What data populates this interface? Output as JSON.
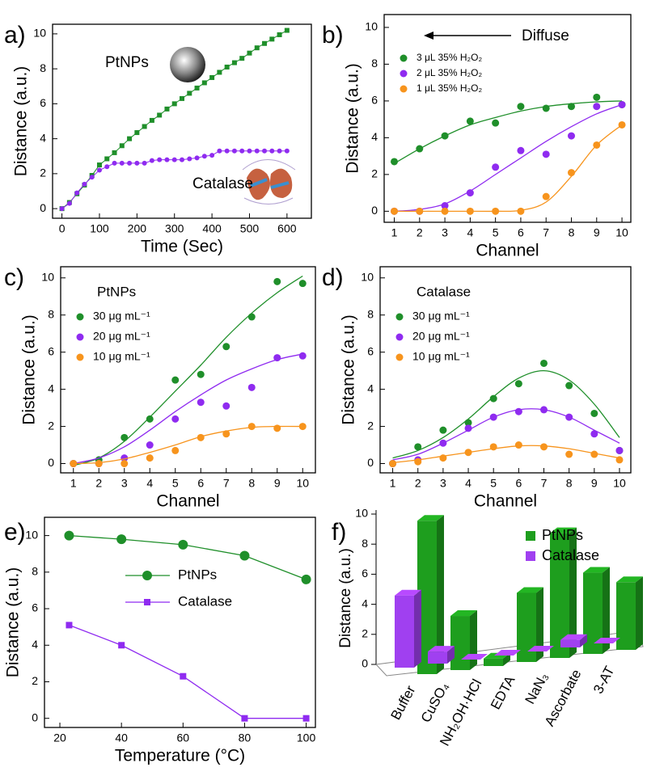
{
  "chart_data": [
    {
      "type": "line",
      "panel_label": "a)",
      "xlabel": "Time (Sec)",
      "ylabel": "Distance (a.u.)",
      "xlim": [
        -25,
        665
      ],
      "ylim": [
        -0.55,
        10.55
      ],
      "xticks": [
        0,
        100,
        200,
        300,
        400,
        500,
        600
      ],
      "yticks": [
        0,
        2,
        4,
        6,
        8,
        10
      ],
      "annotations": [
        "PtNPs",
        "Catalase"
      ],
      "x": [
        0,
        20,
        40,
        60,
        80,
        100,
        120,
        140,
        160,
        180,
        200,
        220,
        240,
        260,
        280,
        300,
        320,
        340,
        360,
        380,
        400,
        420,
        440,
        460,
        480,
        500,
        520,
        540,
        560,
        580,
        600
      ],
      "series": [
        {
          "name": "PtNPs",
          "color": "#1f8f2a",
          "marker": "square",
          "values": [
            0,
            0.35,
            0.85,
            1.35,
            1.9,
            2.5,
            2.85,
            3.2,
            3.6,
            4.0,
            4.35,
            4.7,
            5.05,
            5.35,
            5.7,
            6.0,
            6.3,
            6.6,
            6.9,
            7.2,
            7.5,
            7.8,
            8.1,
            8.35,
            8.6,
            8.9,
            9.2,
            9.45,
            9.7,
            9.95,
            10.2
          ]
        },
        {
          "name": "Catalase",
          "color": "#8f2bf0",
          "marker": "circle",
          "values": [
            0,
            0.3,
            0.9,
            1.4,
            1.8,
            2.2,
            2.4,
            2.6,
            2.6,
            2.6,
            2.6,
            2.6,
            2.75,
            2.8,
            2.8,
            2.8,
            2.8,
            2.85,
            2.9,
            3.0,
            3.05,
            3.3,
            3.3,
            3.3,
            3.3,
            3.3,
            3.3,
            3.3,
            3.3,
            3.3,
            3.3
          ]
        }
      ]
    },
    {
      "type": "scatter",
      "panel_label": "b)",
      "xlabel": "Channel",
      "ylabel": "Distance (a.u.)",
      "annotation": "Diffuse",
      "xlim": [
        0.6,
        10.35
      ],
      "ylim": [
        -0.6,
        10.7
      ],
      "xticks": [
        1,
        2,
        3,
        4,
        5,
        6,
        7,
        8,
        9,
        10
      ],
      "yticks": [
        0,
        2,
        4,
        6,
        8,
        10
      ],
      "x": [
        1,
        2,
        3,
        4,
        5,
        6,
        7,
        8,
        9,
        10
      ],
      "series": [
        {
          "name": "3 μL  35% H₂O₂",
          "color": "#1f8f2a",
          "values": [
            2.7,
            3.4,
            4.1,
            4.9,
            4.8,
            5.7,
            5.6,
            5.7,
            6.2,
            5.8
          ],
          "fit": [
            2.6,
            3.4,
            4.1,
            4.7,
            5.1,
            5.45,
            5.7,
            5.85,
            5.95,
            6.0
          ]
        },
        {
          "name": "2 μL  35% H₂O₂",
          "color": "#8f2bf0",
          "values": [
            0,
            0,
            0.3,
            1.0,
            2.4,
            3.3,
            3.1,
            4.1,
            5.7,
            5.8
          ],
          "fit": [
            0,
            0.1,
            0.4,
            1.1,
            2.0,
            2.9,
            3.8,
            4.6,
            5.3,
            5.8
          ]
        },
        {
          "name": "1 μL  35% H₂O₂",
          "color": "#f7941d",
          "values": [
            0,
            0,
            0,
            0,
            0,
            0,
            0.8,
            2.1,
            3.6,
            4.7
          ],
          "fit": [
            0,
            0,
            0,
            0,
            0,
            0.05,
            0.5,
            1.9,
            3.6,
            4.7
          ]
        }
      ]
    },
    {
      "type": "scatter",
      "panel_label": "c)",
      "xlabel": "Channel",
      "ylabel": "Distance (a.u.)",
      "legend_title": "PtNPs",
      "xlim": [
        0.5,
        10.5
      ],
      "ylim": [
        -0.5,
        10.6
      ],
      "xticks": [
        1,
        2,
        3,
        4,
        5,
        6,
        7,
        8,
        9,
        10
      ],
      "yticks": [
        0,
        2,
        4,
        6,
        8,
        10
      ],
      "x": [
        1,
        2,
        3,
        4,
        5,
        6,
        7,
        8,
        9,
        10
      ],
      "series": [
        {
          "name": "30 μg mL⁻¹",
          "color": "#1f8f2a",
          "values": [
            0,
            0.2,
            1.4,
            2.4,
            4.5,
            4.8,
            6.3,
            7.9,
            9.8,
            9.7
          ],
          "fit": [
            -0.1,
            0.3,
            1.2,
            2.5,
            3.9,
            5.3,
            6.8,
            8.1,
            9.2,
            10.1
          ]
        },
        {
          "name": "20 μg mL⁻¹",
          "color": "#8f2bf0",
          "values": [
            0,
            0,
            0.3,
            1.0,
            2.4,
            3.3,
            3.1,
            4.1,
            5.7,
            5.8
          ],
          "fit": [
            0,
            0.3,
            0.9,
            1.8,
            2.8,
            3.7,
            4.5,
            5.1,
            5.6,
            5.9
          ]
        },
        {
          "name": "10 μg mL⁻¹",
          "color": "#f7941d",
          "values": [
            0,
            0,
            0,
            0.3,
            0.7,
            1.4,
            1.6,
            2.0,
            1.9,
            2.0
          ],
          "fit": [
            0,
            0.05,
            0.25,
            0.6,
            1.0,
            1.45,
            1.75,
            1.95,
            2.0,
            2.0
          ]
        }
      ]
    },
    {
      "type": "scatter",
      "panel_label": "d)",
      "xlabel": "Channel",
      "ylabel": "Distance (a.u.)",
      "legend_title": "Catalase",
      "xlim": [
        0.5,
        10.45
      ],
      "ylim": [
        -0.5,
        10.6
      ],
      "xticks": [
        1,
        2,
        3,
        4,
        5,
        6,
        7,
        8,
        9,
        10
      ],
      "yticks": [
        0,
        2,
        4,
        6,
        8,
        10
      ],
      "x": [
        1,
        2,
        3,
        4,
        5,
        6,
        7,
        8,
        9,
        10
      ],
      "series": [
        {
          "name": "30 μg mL⁻¹",
          "color": "#1f8f2a",
          "values": [
            0,
            0.9,
            1.8,
            2.2,
            3.5,
            4.3,
            5.4,
            4.2,
            2.7,
            0.7
          ],
          "fit": [
            0.3,
            0.7,
            1.4,
            2.4,
            3.6,
            4.6,
            5.0,
            4.5,
            3.2,
            1.4
          ]
        },
        {
          "name": "20 μg mL⁻¹",
          "color": "#8f2bf0",
          "values": [
            0,
            0.2,
            1.1,
            1.9,
            2.5,
            2.8,
            2.9,
            2.5,
            1.6,
            0.7
          ],
          "fit": [
            0.2,
            0.5,
            1.1,
            1.8,
            2.5,
            2.9,
            2.9,
            2.5,
            1.8,
            1.1
          ]
        },
        {
          "name": "10 μg mL⁻¹",
          "color": "#f7941d",
          "values": [
            0,
            0.1,
            0.3,
            0.6,
            0.9,
            1.0,
            0.9,
            0.5,
            0.5,
            0.2
          ],
          "fit": [
            0.05,
            0.2,
            0.4,
            0.6,
            0.8,
            0.95,
            0.95,
            0.8,
            0.55,
            0.3
          ]
        }
      ]
    },
    {
      "type": "line",
      "panel_label": "e)",
      "xlabel": "Temperature (°C)",
      "ylabel": "Distance (a.u.)",
      "legend": true,
      "xlim": [
        15,
        103
      ],
      "ylim": [
        -0.5,
        11
      ],
      "xticks": [
        20,
        40,
        60,
        80,
        100
      ],
      "yticks": [
        0,
        2,
        4,
        6,
        8,
        10
      ],
      "x": [
        23,
        40,
        60,
        80,
        100
      ],
      "series": [
        {
          "name": "PtNPs",
          "color": "#1f8f2a",
          "marker": "circle",
          "values": [
            10,
            9.8,
            9.5,
            8.9,
            7.6
          ]
        },
        {
          "name": "Catalase",
          "color": "#8f2bf0",
          "marker": "square",
          "values": [
            5.1,
            4.0,
            2.3,
            0,
            0
          ]
        }
      ]
    },
    {
      "type": "bar3d",
      "panel_label": "f)",
      "ylabel": "Distance (a.u.)",
      "ylim": [
        0,
        10
      ],
      "yticks": [
        0,
        2,
        4,
        6,
        8,
        10
      ],
      "categories": [
        "Buffer",
        "CuSO₄",
        "NH₂OH·HCl",
        "EDTA",
        "NaN₃",
        "Ascorbate",
        "3-AT"
      ],
      "series": [
        {
          "name": "PtNPs",
          "color": "#1e9e1e",
          "values": [
            10.2,
            3.6,
            0.5,
            4.6,
            8.3,
            5.4,
            4.5
          ]
        },
        {
          "name": "Catalase",
          "color": "#a040f0",
          "values": [
            4.8,
            0.8,
            0,
            0,
            0,
            0.5,
            0
          ]
        }
      ]
    }
  ]
}
